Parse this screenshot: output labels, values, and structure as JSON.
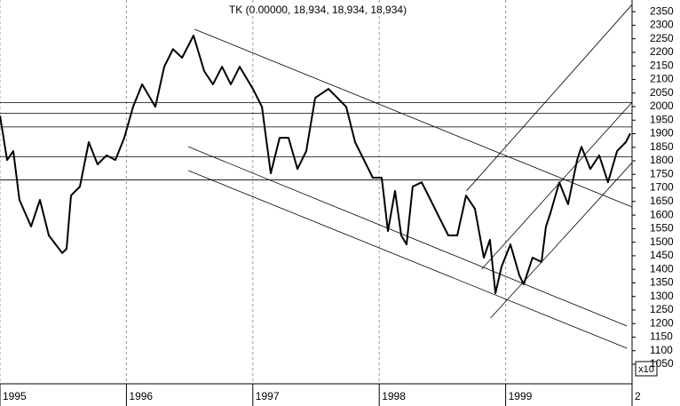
{
  "chart_data": {
    "type": "line",
    "title": "TK (0.00000, 18,934, 18,934, 18,934)",
    "multiplier": "x10",
    "x": [
      1995.0,
      1995.056,
      1995.105,
      1995.154,
      1995.246,
      1995.316,
      1995.386,
      1995.492,
      1995.527,
      1995.562,
      1995.632,
      1995.702,
      1995.772,
      1995.843,
      1995.913,
      1995.983,
      1996.053,
      1996.124,
      1996.229,
      1996.299,
      1996.369,
      1996.44,
      1996.531,
      1996.615,
      1996.685,
      1996.756,
      1996.826,
      1996.896,
      1997.001,
      1997.072,
      1997.142,
      1997.212,
      1997.282,
      1997.353,
      1997.423,
      1997.493,
      1997.598,
      1997.669,
      1997.739,
      1997.809,
      1997.879,
      1997.949,
      1998.02,
      1998.069,
      1998.125,
      1998.174,
      1998.216,
      1998.265,
      1998.336,
      1998.406,
      1998.476,
      1998.546,
      1998.617,
      1998.687,
      1998.757,
      1998.827,
      1998.876,
      1998.919,
      1998.968,
      1999.038,
      1999.108,
      1999.143,
      1999.213,
      1999.284,
      1999.319,
      1999.354,
      1999.424,
      1999.494,
      1999.565,
      1999.6,
      1999.67,
      1999.74,
      1999.81,
      1999.881,
      1999.951,
      1999.986
    ],
    "series": [
      {
        "name": "TK",
        "color": "#000000",
        "values": [
          1967,
          1803,
          1836,
          1656,
          1558,
          1656,
          1525,
          1460,
          1476,
          1672,
          1705,
          1869,
          1787,
          1820,
          1803,
          1885,
          1999,
          2082,
          1999,
          2147,
          2212,
          2180,
          2262,
          2131,
          2082,
          2147,
          2082,
          2147,
          2065,
          1999,
          1754,
          1885,
          1885,
          1770,
          1836,
          2032,
          2065,
          2032,
          1999,
          1869,
          1803,
          1738,
          1738,
          1541,
          1689,
          1525,
          1492,
          1705,
          1721,
          1656,
          1590,
          1525,
          1525,
          1672,
          1623,
          1443,
          1509,
          1312,
          1410,
          1492,
          1378,
          1345,
          1443,
          1427,
          1558,
          1607,
          1721,
          1640,
          1803,
          1852,
          1770,
          1820,
          1721,
          1836,
          1869,
          1901
        ]
      }
    ],
    "xlim": [
      1995,
      2000
    ],
    "xticks": [
      1995,
      1996,
      1997,
      1998,
      1999,
      {
        "value": 2000,
        "label": "2"
      }
    ],
    "ylim": [
      978,
      2393
    ],
    "yticks": [
      1050,
      1100,
      1150,
      1200,
      1250,
      1300,
      1350,
      1400,
      1450,
      1500,
      1550,
      1600,
      1650,
      1700,
      1750,
      1800,
      1850,
      1900,
      1950,
      2000,
      2050,
      2100,
      2150,
      2200,
      2250,
      2300,
      2350
    ],
    "hlines": [
      2015,
      1975,
      1925,
      1815,
      1730
    ],
    "trendlines": [
      {
        "x": [
          1996.54,
          2000.0
        ],
        "y": [
          2285,
          1630
        ]
      },
      {
        "x": [
          1996.49,
          1999.96
        ],
        "y": [
          1852,
          1191
        ]
      },
      {
        "x": [
          1996.49,
          1999.96
        ],
        "y": [
          1764,
          1109
        ]
      },
      {
        "x": [
          1998.69,
          2000.0
        ],
        "y": [
          1689,
          2376
        ]
      },
      {
        "x": [
          1998.81,
          2000.0
        ],
        "y": [
          1400,
          2016
        ]
      },
      {
        "x": [
          1998.88,
          2000.0
        ],
        "y": [
          1220,
          1793
        ]
      }
    ],
    "xgrid": true
  }
}
